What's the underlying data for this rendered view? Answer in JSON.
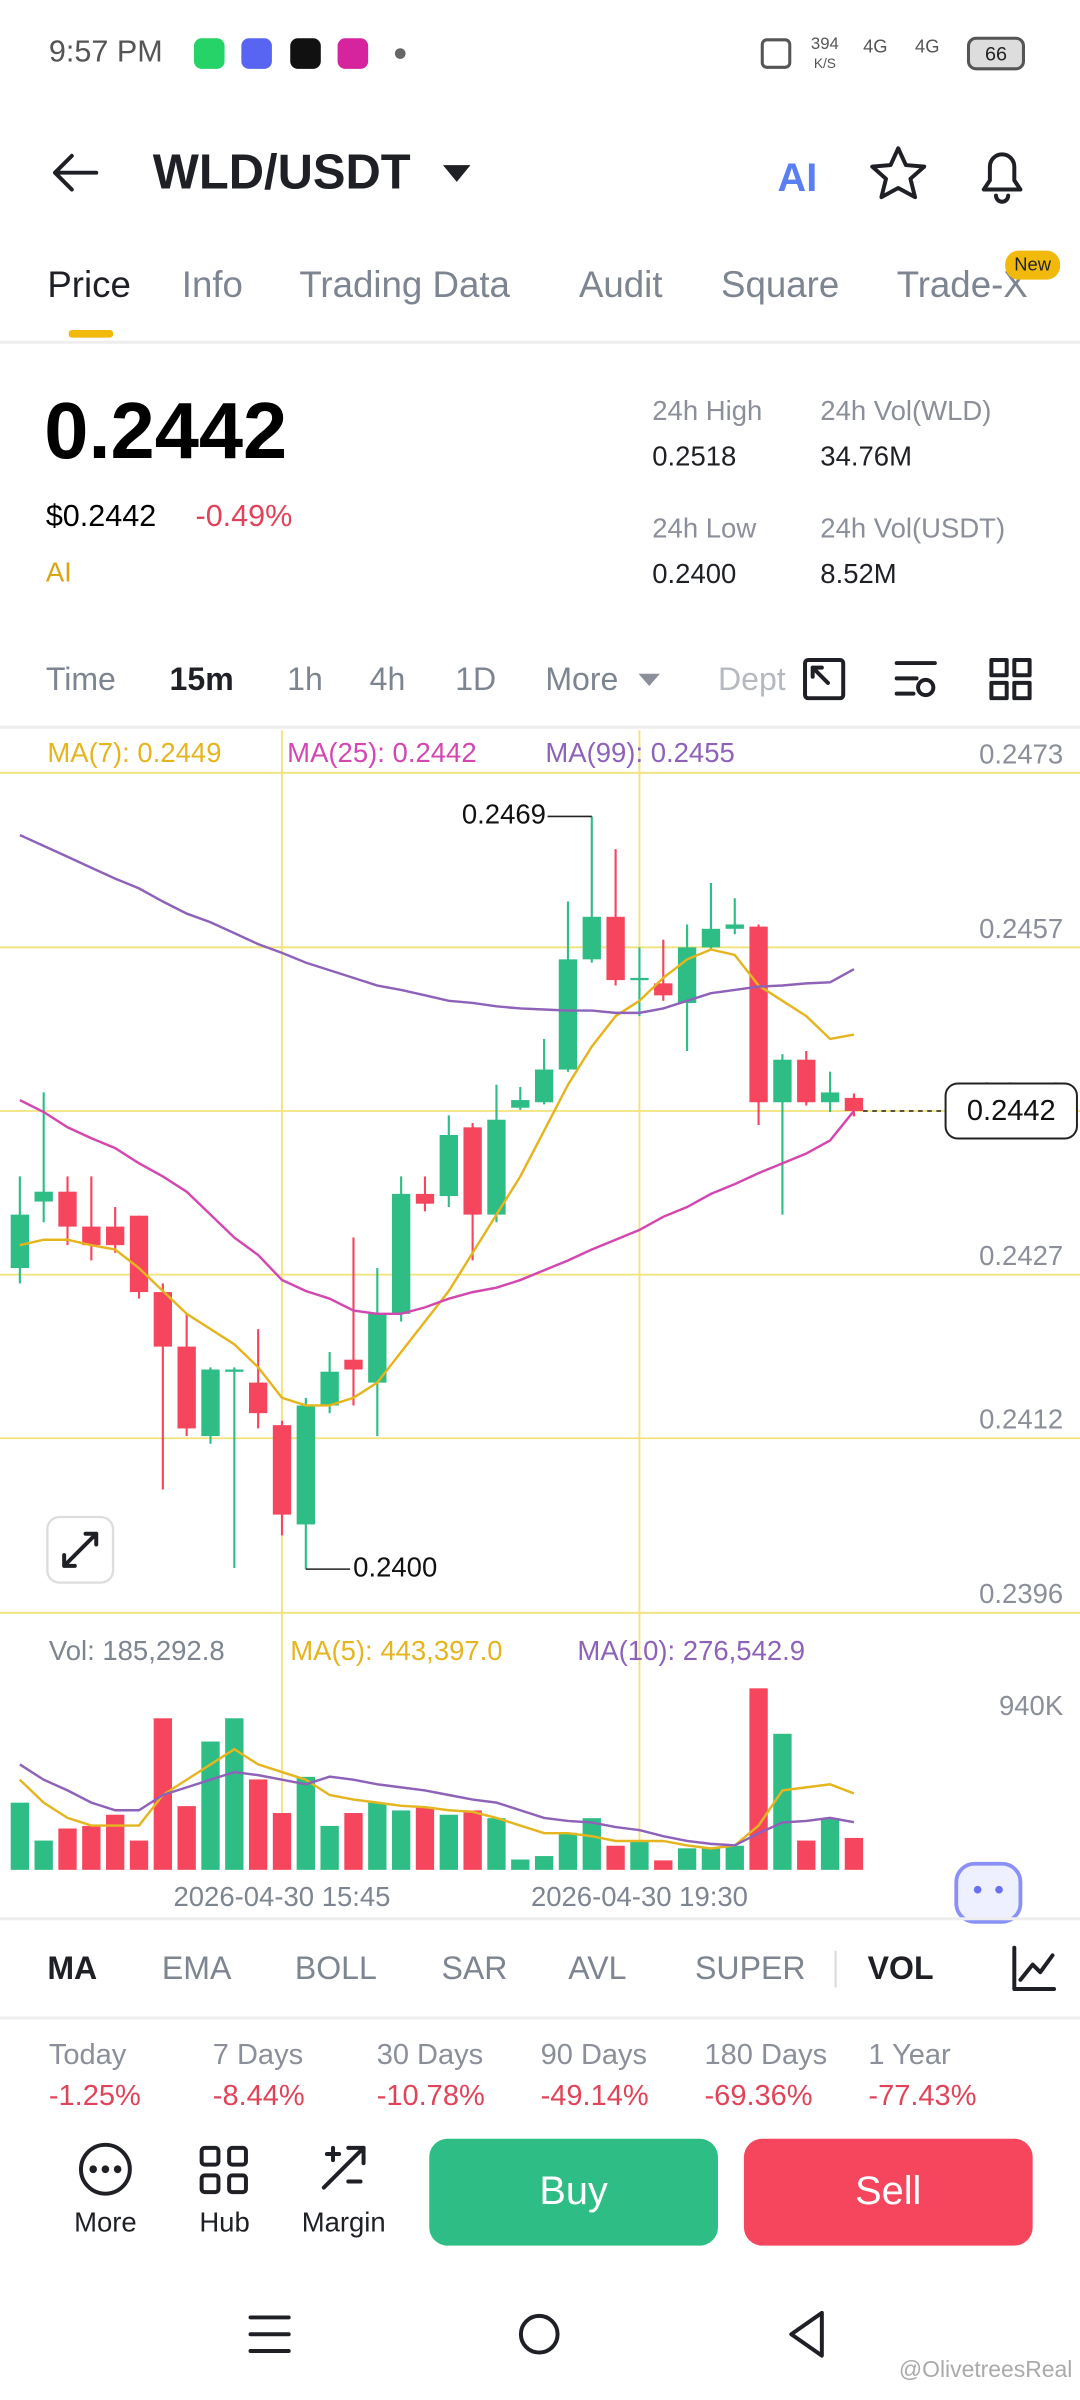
{
  "status_bar": {
    "time": "9:57 PM",
    "net_speed": "394",
    "net_unit": "K/S",
    "sim1": "4G",
    "sim2": "4G",
    "battery": "66"
  },
  "header": {
    "pair": "WLD/USDT",
    "ai_button": "AI"
  },
  "tabs": [
    "Price",
    "Info",
    "Trading Data",
    "Audit",
    "Square",
    "Trade-X"
  ],
  "tab_badge": "New",
  "ticker": {
    "last": "0.2442",
    "usd": "$0.2442",
    "change": "-0.49%",
    "tag": "AI",
    "stats": [
      {
        "label": "24h High",
        "value": "0.2518"
      },
      {
        "label": "24h Vol(WLD)",
        "value": "34.76M"
      },
      {
        "label": "24h Low",
        "value": "0.2400"
      },
      {
        "label": "24h Vol(USDT)",
        "value": "8.52M"
      }
    ]
  },
  "intervals": [
    "Time",
    "15m",
    "1h",
    "4h",
    "1D",
    "More",
    "Dept"
  ],
  "chart_data": [
    {
      "type": "candlestick",
      "categories": [
        null,
        null,
        null,
        null,
        null,
        null,
        null,
        null,
        null,
        null,
        null,
        "2026-04-30 15:45",
        null,
        null,
        null,
        null,
        null,
        null,
        null,
        null,
        null,
        null,
        null,
        null,
        null,
        null,
        "2026-04-30 19:30",
        null,
        null,
        null,
        null,
        null,
        null,
        null,
        null,
        null
      ],
      "open": [
        0.24276,
        0.24337,
        0.24346,
        0.24314,
        0.24314,
        0.24324,
        0.24254,
        0.24204,
        0.24122,
        0.24181,
        0.24171,
        0.24132,
        0.24041,
        0.2415,
        0.24192,
        0.24171,
        0.24234,
        0.24344,
        0.24342,
        0.24405,
        0.24325,
        0.24423,
        0.24428,
        0.24458,
        0.24559,
        0.24598,
        0.2454,
        0.24537,
        0.24519,
        0.2457,
        0.24587,
        0.24589,
        0.24428,
        0.24467,
        0.24428,
        0.24432
      ],
      "high": [
        0.2436,
        0.24437,
        0.2436,
        0.2436,
        0.24332,
        0.24324,
        0.24262,
        0.24234,
        0.24185,
        0.24185,
        0.2422,
        0.24136,
        0.24157,
        0.24199,
        0.24304,
        0.24276,
        0.2436,
        0.2436,
        0.24416,
        0.24409,
        0.24444,
        0.24442,
        0.24486,
        0.24612,
        0.2469,
        0.2466,
        0.2457,
        0.24577,
        0.24591,
        0.24629,
        0.24615,
        0.24591,
        0.24472,
        0.24475,
        0.24456,
        0.24436
      ],
      "low": [
        0.24262,
        0.24318,
        0.24297,
        0.24283,
        0.2429,
        0.24248,
        0.24073,
        0.24122,
        0.24115,
        0.24001,
        0.24129,
        0.24031,
        0.24,
        0.24143,
        0.2415,
        0.24122,
        0.24227,
        0.24328,
        0.24332,
        0.24283,
        0.24318,
        0.24421,
        0.24426,
        0.24456,
        0.24556,
        0.24535,
        0.24507,
        0.24521,
        0.24475,
        0.24568,
        0.24582,
        0.24407,
        0.24325,
        0.24425,
        0.24419,
        0.24415
      ],
      "close": [
        0.24325,
        0.24346,
        0.24314,
        0.24297,
        0.24297,
        0.24254,
        0.24204,
        0.24129,
        0.24183,
        0.24183,
        0.24143,
        0.2405,
        0.2415,
        0.24181,
        0.24183,
        0.24234,
        0.24344,
        0.24335,
        0.24398,
        0.24325,
        0.24412,
        0.2443,
        0.24458,
        0.24559,
        0.24598,
        0.2454,
        0.24542,
        0.24526,
        0.2457,
        0.24587,
        0.24591,
        0.24428,
        0.24467,
        0.24428,
        0.24437,
        0.2442
      ],
      "up_color": "#2ebd85",
      "down_color": "#f6465d",
      "ylim": [
        0.23947,
        0.24769
      ],
      "yticks": [
        0.2473,
        0.2457,
        0.2442,
        0.2427,
        0.2412,
        0.2396
      ],
      "grid": true,
      "lines": [
        {
          "name": "MA(7): 0.2449",
          "color": "#e5b51f",
          "values": [
            0.24297,
            0.24302,
            0.24302,
            0.24297,
            0.24293,
            0.24276,
            0.24255,
            0.24234,
            0.2422,
            0.24206,
            0.24185,
            0.24157,
            0.2415,
            0.2415,
            0.24157,
            0.24171,
            0.24199,
            0.24227,
            0.24255,
            0.2429,
            0.24325,
            0.2436,
            0.24402,
            0.24444,
            0.24479,
            0.24507,
            0.24521,
            0.24542,
            0.24559,
            0.24568,
            0.24563,
            0.24535,
            0.24521,
            0.24507,
            0.24486,
            0.2449
          ]
        },
        {
          "name": "MA(25): 0.2442",
          "color": "#d347b0",
          "values": [
            0.2443,
            0.24419,
            0.24405,
            0.24395,
            0.24386,
            0.24372,
            0.2436,
            0.24346,
            0.24325,
            0.24304,
            0.24288,
            0.24265,
            0.24255,
            0.24248,
            0.24237,
            0.24234,
            0.24234,
            0.2424,
            0.24248,
            0.24254,
            0.24258,
            0.24265,
            0.24274,
            0.24283,
            0.24293,
            0.24302,
            0.24311,
            0.24323,
            0.24332,
            0.24344,
            0.24353,
            0.24363,
            0.24372,
            0.24381,
            0.24393,
            0.2442
          ]
        },
        {
          "name": "MA(99): 0.2455",
          "color": "#8e62b8",
          "values": [
            0.24673,
            0.24663,
            0.24653,
            0.24643,
            0.24633,
            0.24624,
            0.24612,
            0.24601,
            0.24593,
            0.24583,
            0.24573,
            0.24565,
            0.24556,
            0.24549,
            0.24542,
            0.24535,
            0.24531,
            0.24526,
            0.24521,
            0.24519,
            0.24516,
            0.24514,
            0.24513,
            0.24512,
            0.24512,
            0.2451,
            0.2451,
            0.24514,
            0.24521,
            0.24528,
            0.24531,
            0.24534,
            0.24535,
            0.24537,
            0.24538,
            0.2455
          ]
        }
      ],
      "high_label": {
        "value": 0.2469,
        "label": "0.2469"
      },
      "low_label": {
        "value": 0.24,
        "label": "0.2400"
      },
      "last_price": {
        "value": 0.2442,
        "label": "0.2442"
      }
    },
    {
      "type": "bar",
      "title": "Vol: 185,292.8",
      "values": [
        390000,
        170000,
        240000,
        255000,
        320000,
        170000,
        880000,
        370000,
        745000,
        880000,
        525000,
        330000,
        540000,
        255000,
        330000,
        390000,
        345000,
        365000,
        320000,
        345000,
        300000,
        60000,
        80000,
        215000,
        300000,
        140000,
        170000,
        55000,
        125000,
        125000,
        140000,
        1054000,
        790000,
        170000,
        300000,
        185292.8
      ],
      "ylim": [
        0,
        1366000
      ],
      "yticks": [
        {
          "value": 940000,
          "label": "940K"
        }
      ],
      "lines": [
        {
          "name": "MA(5): 443,397.0",
          "color": "#e5b51f",
          "values": [
            523000,
            390000,
            302000,
            257000,
            257000,
            257000,
            435000,
            523000,
            612000,
            701000,
            612000,
            568000,
            523000,
            435000,
            408000,
            390000,
            372000,
            364000,
            346000,
            337000,
            302000,
            257000,
            213000,
            213000,
            195000,
            168000,
            168000,
            168000,
            142000,
            124000,
            142000,
            257000,
            461000,
            479000,
            497000,
            443397
          ]
        },
        {
          "name": "MA(10): 276,542.9",
          "color": "#8e62b8",
          "values": [
            612000,
            523000,
            461000,
            390000,
            346000,
            346000,
            435000,
            479000,
            523000,
            568000,
            550000,
            523000,
            497000,
            541000,
            523000,
            497000,
            479000,
            461000,
            435000,
            408000,
            390000,
            346000,
            302000,
            284000,
            275000,
            248000,
            231000,
            195000,
            168000,
            151000,
            142000,
            213000,
            275000,
            284000,
            302000,
            276542.9
          ]
        }
      ]
    }
  ],
  "indicators": [
    "MA",
    "EMA",
    "BOLL",
    "SAR",
    "AVL",
    "SUPER",
    "VOL"
  ],
  "performance": [
    {
      "label": "Today",
      "value": "-1.25%"
    },
    {
      "label": "7 Days",
      "value": "-8.44%"
    },
    {
      "label": "30 Days",
      "value": "-10.78%"
    },
    {
      "label": "90 Days",
      "value": "-49.14%"
    },
    {
      "label": "180 Days",
      "value": "-69.36%"
    },
    {
      "label": "1 Year",
      "value": "-77.43%"
    }
  ],
  "actions": [
    "More",
    "Hub",
    "Margin"
  ],
  "buy": "Buy",
  "sell": "Sell",
  "watermark": "@OlivetreesReal"
}
